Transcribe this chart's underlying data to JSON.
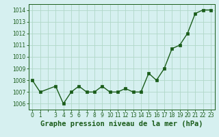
{
  "x": [
    0,
    1,
    3,
    4,
    5,
    6,
    7,
    8,
    9,
    10,
    11,
    12,
    13,
    14,
    15,
    16,
    17,
    18,
    19,
    20,
    21,
    22,
    23
  ],
  "y": [
    1008.0,
    1007.0,
    1007.5,
    1006.0,
    1007.0,
    1007.5,
    1007.0,
    1007.0,
    1007.5,
    1007.0,
    1007.0,
    1007.3,
    1007.0,
    1007.0,
    1008.6,
    1008.0,
    1009.0,
    1010.7,
    1011.0,
    1012.0,
    1013.7,
    1014.0,
    1014.0
  ],
  "xticks": [
    0,
    1,
    3,
    4,
    5,
    6,
    7,
    8,
    9,
    10,
    11,
    12,
    13,
    14,
    15,
    16,
    17,
    18,
    19,
    20,
    21,
    22,
    23
  ],
  "xtick_labels": [
    "0",
    "1",
    "3",
    "4",
    "5",
    "6",
    "7",
    "8",
    "9",
    "10",
    "11",
    "12",
    "13",
    "14",
    "15",
    "16",
    "17",
    "18",
    "19",
    "20",
    "21",
    "22",
    "23"
  ],
  "yticks": [
    1006,
    1007,
    1008,
    1009,
    1010,
    1011,
    1012,
    1013,
    1014
  ],
  "ylim": [
    1005.5,
    1014.5
  ],
  "xlim": [
    -0.5,
    23.5
  ],
  "line_color": "#1a5c1a",
  "marker_color": "#1a5c1a",
  "bg_color": "#d6f0f0",
  "grid_color": "#b0d8c8",
  "xlabel": "Graphe pression niveau de la mer (hPa)",
  "xlabel_color": "#1a5c1a",
  "tick_color": "#1a5c1a",
  "tick_fontsize": 5.5,
  "xlabel_fontsize": 7.5,
  "linewidth": 1.0,
  "markersize": 2.5
}
